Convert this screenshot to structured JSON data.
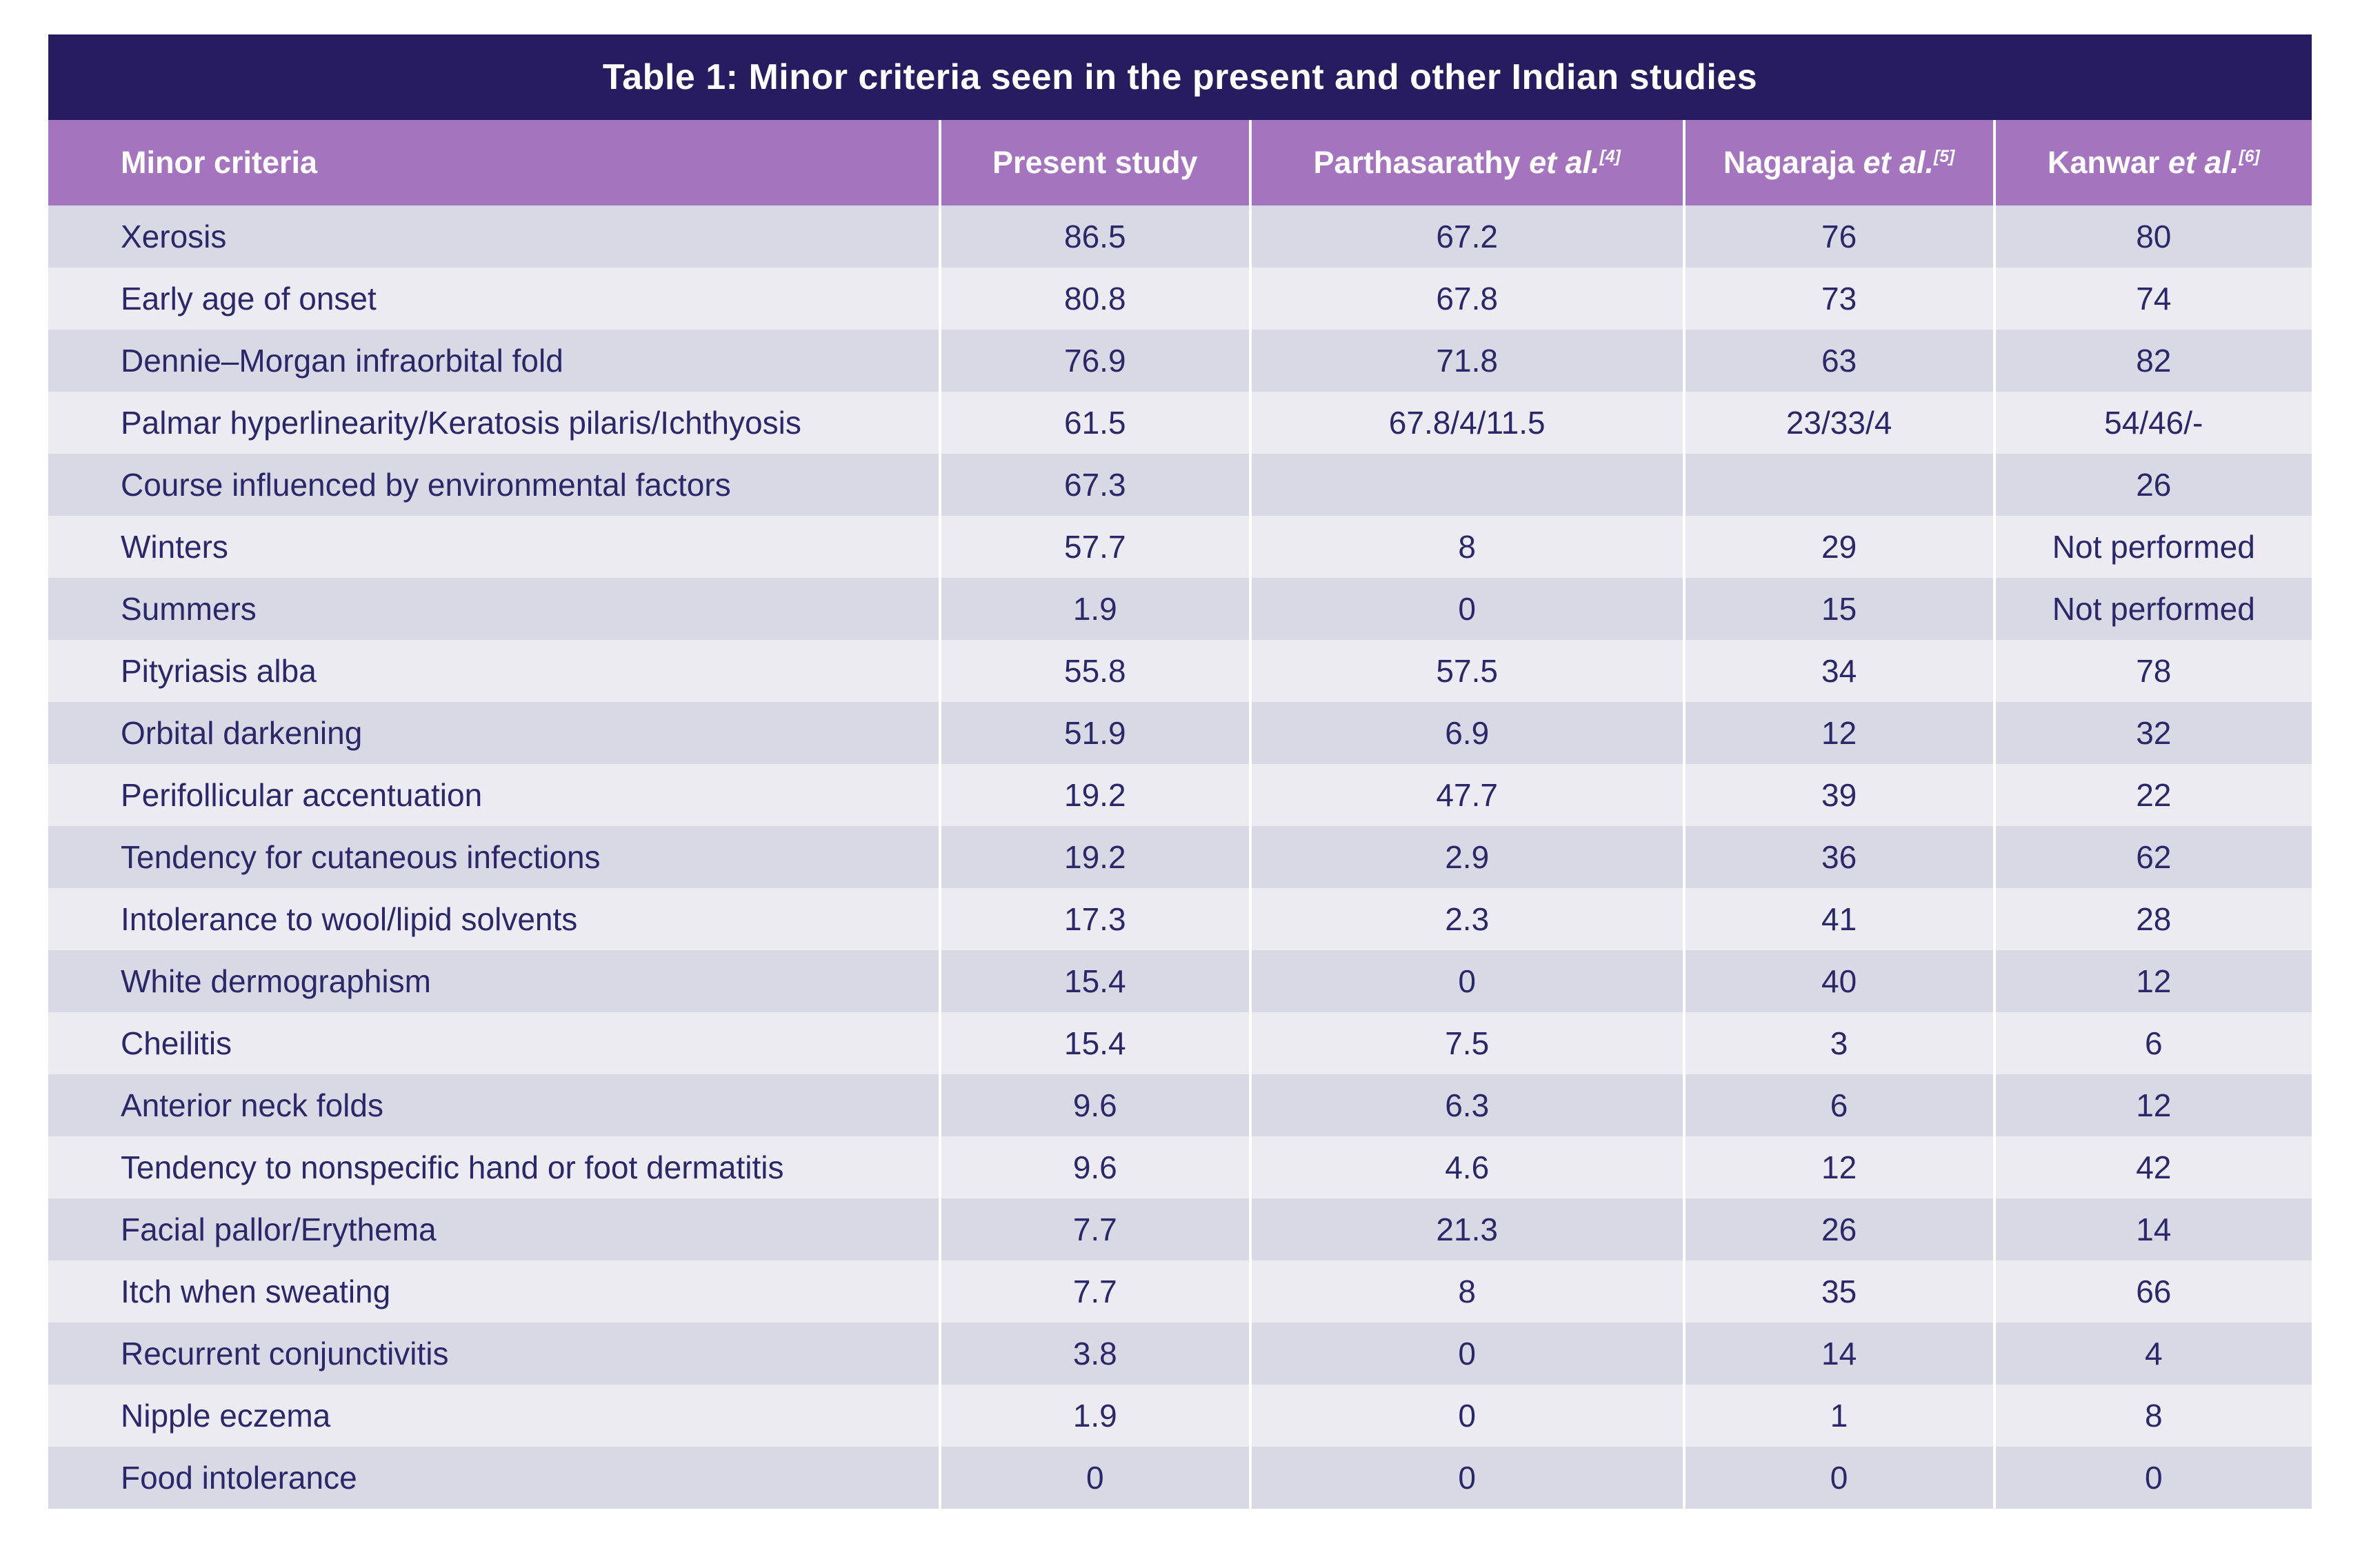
{
  "colors": {
    "navy": "#271C60",
    "purple": "#A475BE",
    "row-dark": "#D9D8E5",
    "row-light": "#ECEBF2",
    "cell-text": "#2B2768",
    "header-text": "#FFFFFF",
    "divider": "#FFFFFF",
    "page-bg": "#FFFFFF"
  },
  "table": {
    "title": "Table 1: Minor criteria seen in the present and other Indian studies",
    "columns": [
      {
        "text": "Minor criteria",
        "etal": "",
        "sup": ""
      },
      {
        "text": "Present study",
        "etal": "",
        "sup": ""
      },
      {
        "text": "Parthasarathy ",
        "etal": "et al.",
        "sup": "[4]"
      },
      {
        "text": "Nagaraja ",
        "etal": "et al.",
        "sup": "[5]"
      },
      {
        "text": "Kanwar ",
        "etal": "et al.",
        "sup": "[6]"
      }
    ],
    "rows": [
      {
        "cells": [
          "Xerosis",
          "86.5",
          "67.2",
          "76",
          "80"
        ]
      },
      {
        "cells": [
          "Early age of onset",
          "80.8",
          "67.8",
          "73",
          "74"
        ]
      },
      {
        "cells": [
          "Dennie–Morgan infraorbital fold",
          "76.9",
          "71.8",
          "63",
          "82"
        ]
      },
      {
        "cells": [
          "Palmar hyperlinearity/Keratosis pilaris/Ichthyosis",
          "61.5",
          "67.8/4/11.5",
          "23/33/4",
          "54/46/-"
        ]
      },
      {
        "cells": [
          "Course influenced by environmental factors",
          "67.3",
          "",
          "",
          "26"
        ]
      },
      {
        "cells": [
          "Winters",
          "57.7",
          "8",
          "29",
          "Not performed"
        ]
      },
      {
        "cells": [
          "Summers",
          "1.9",
          "0",
          "15",
          "Not performed"
        ]
      },
      {
        "cells": [
          "Pityriasis alba",
          "55.8",
          "57.5",
          "34",
          "78"
        ]
      },
      {
        "cells": [
          "Orbital darkening",
          "51.9",
          "6.9",
          "12",
          "32"
        ]
      },
      {
        "cells": [
          "Perifollicular accentuation",
          "19.2",
          "47.7",
          "39",
          "22"
        ]
      },
      {
        "cells": [
          "Tendency for cutaneous infections",
          "19.2",
          "2.9",
          "36",
          "62"
        ]
      },
      {
        "cells": [
          "Intolerance to wool/lipid solvents",
          "17.3",
          "2.3",
          "41",
          "28"
        ]
      },
      {
        "cells": [
          "White dermographism",
          "15.4",
          "0",
          "40",
          "12"
        ]
      },
      {
        "cells": [
          "Cheilitis",
          "15.4",
          "7.5",
          "3",
          "6"
        ]
      },
      {
        "cells": [
          "Anterior neck folds",
          "9.6",
          "6.3",
          "6",
          "12"
        ]
      },
      {
        "cells": [
          "Tendency to nonspecific hand or foot dermatitis",
          "9.6",
          "4.6",
          "12",
          "42"
        ]
      },
      {
        "cells": [
          "Facial pallor/Erythema",
          "7.7",
          "21.3",
          "26",
          "14"
        ]
      },
      {
        "cells": [
          "Itch when sweating",
          "7.7",
          "8",
          "35",
          "66"
        ]
      },
      {
        "cells": [
          "Recurrent conjunctivitis",
          "3.8",
          "0",
          "14",
          "4"
        ]
      },
      {
        "cells": [
          "Nipple eczema",
          "1.9",
          "0",
          "1",
          "8"
        ]
      },
      {
        "cells": [
          "Food intolerance",
          "0",
          "0",
          "0",
          "0"
        ]
      }
    ]
  }
}
